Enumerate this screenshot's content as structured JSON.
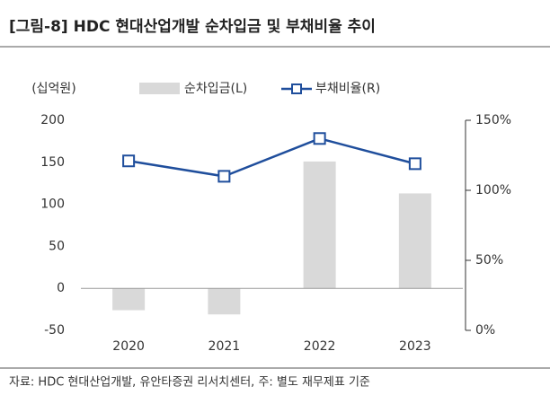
{
  "chart_data": {
    "type": "combo",
    "title": "[그림-8] HDC 현대산업개발 순차입금 및 부채비율 추이",
    "y_unit": "(십억원)",
    "categories": [
      "2020",
      "2021",
      "2022",
      "2023"
    ],
    "series": [
      {
        "name": "순차입금(L)",
        "type": "bar",
        "color": "#d9d9d9",
        "values": [
          -26,
          -31,
          151,
          113
        ]
      },
      {
        "name": "부채비율(R)",
        "type": "line",
        "axis": "y2",
        "color": "#1f4e9c",
        "values": [
          121,
          110,
          137,
          119
        ]
      }
    ],
    "ylim": [
      -50,
      200
    ],
    "yticks": [
      -50,
      0,
      50,
      100,
      150,
      200
    ],
    "y2lim": [
      0,
      150
    ],
    "y2ticks": [
      {
        "value": 0,
        "label": "0%"
      },
      {
        "value": 50,
        "label": "50%"
      },
      {
        "value": 100,
        "label": "100%"
      },
      {
        "value": 150,
        "label": "150%"
      }
    ],
    "source": "자료: HDC 현대산업개발, 유안타증권 리서치센터, 주: 별도 재무제표 기준"
  }
}
